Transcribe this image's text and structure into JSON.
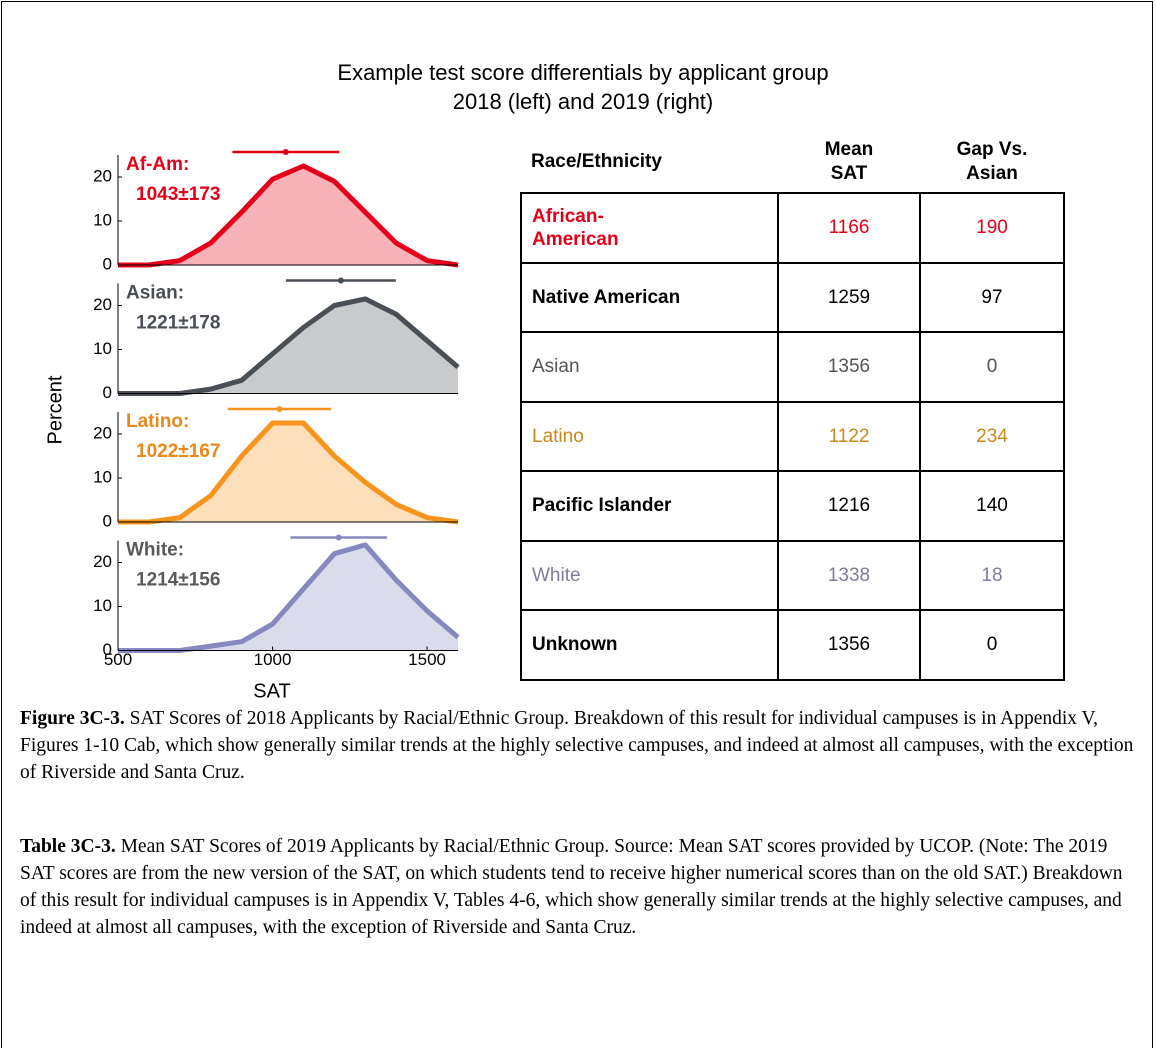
{
  "figure": {
    "title": [
      "Example test score differentials by applicant group",
      "2018 (left) and 2019 (right)"
    ],
    "ylabel": "Percent",
    "xlabel": "SAT"
  },
  "chart_data": [
    {
      "type": "line",
      "name": "Af-Am:",
      "annotation": "1043±173",
      "mean": 1043,
      "sd": 173,
      "color": "#e3001b",
      "text_color": "#e3001b",
      "x": [
        500,
        600,
        700,
        800,
        900,
        1000,
        1100,
        1200,
        1300,
        1400,
        1500,
        1600
      ],
      "values": [
        0,
        0,
        1,
        5,
        12,
        19.5,
        22.5,
        19,
        12,
        5,
        1,
        0
      ],
      "xlim": [
        500,
        1600
      ],
      "ylim": [
        0,
        25
      ],
      "yticks": [
        0,
        10,
        20
      ]
    },
    {
      "type": "line",
      "name": "Asian:",
      "annotation": "1221±178",
      "mean": 1221,
      "sd": 178,
      "color": "#4a4f55",
      "text_color": "#4a4f55",
      "x": [
        500,
        600,
        700,
        800,
        900,
        1000,
        1100,
        1200,
        1300,
        1400,
        1500,
        1600
      ],
      "values": [
        0,
        0,
        0,
        1,
        3,
        9,
        15,
        20,
        21.5,
        18,
        12,
        6
      ],
      "xlim": [
        500,
        1600
      ],
      "ylim": [
        0,
        25
      ],
      "yticks": [
        0,
        10,
        20
      ]
    },
    {
      "type": "line",
      "name": "Latino:",
      "annotation": "1022±167",
      "mean": 1022,
      "sd": 167,
      "color": "#f7941d",
      "text_color": "#e8891a",
      "x": [
        500,
        600,
        700,
        800,
        900,
        1000,
        1100,
        1200,
        1300,
        1400,
        1500,
        1600
      ],
      "values": [
        0,
        0,
        1,
        6,
        15,
        22.5,
        22.5,
        15,
        9,
        4,
        1,
        0
      ],
      "xlim": [
        500,
        1600
      ],
      "ylim": [
        0,
        25
      ],
      "yticks": [
        0,
        10,
        20
      ]
    },
    {
      "type": "line",
      "name": "White:",
      "annotation": "1214±156",
      "mean": 1214,
      "sd": 156,
      "color": "#8589bd",
      "text_color": "#5a5a5a",
      "x": [
        500,
        600,
        700,
        800,
        900,
        1000,
        1100,
        1200,
        1300,
        1400,
        1500,
        1600
      ],
      "values": [
        0,
        0,
        0,
        1,
        2,
        6,
        14,
        22,
        24,
        16,
        9,
        3
      ],
      "xlim": [
        500,
        1600
      ],
      "ylim": [
        0,
        25
      ],
      "yticks": [
        0,
        10,
        20
      ],
      "xticks": [
        500,
        1000,
        1500
      ]
    }
  ],
  "table": {
    "header": [
      "Race/Ethnicity",
      "Mean SAT",
      "Gap Vs. Asian"
    ],
    "rows": [
      {
        "cells": [
          "African-American",
          "1166",
          "190"
        ],
        "color": "#e3001b",
        "bold": true
      },
      {
        "cells": [
          "Native American",
          "1259",
          "97"
        ],
        "color": "#000000",
        "bold": true
      },
      {
        "cells": [
          "Asian",
          "1356",
          "0"
        ],
        "color": "#555555",
        "bold": false
      },
      {
        "cells": [
          "Latino",
          "1122",
          "234"
        ],
        "color": "#c8891f",
        "bold": false
      },
      {
        "cells": [
          "Pacific Islander",
          "1216",
          "140"
        ],
        "color": "#000000",
        "bold": true
      },
      {
        "cells": [
          "White",
          "1338",
          "18"
        ],
        "color": "#7d7d9a",
        "bold": false
      },
      {
        "cells": [
          "Unknown",
          "1356",
          "0"
        ],
        "color": "#000000",
        "bold": true
      }
    ]
  },
  "captions": [
    {
      "label": "Figure 3C-3.",
      "text": "SAT Scores of 2018 Applicants by Racial/Ethnic Group. Breakdown of this result for individual campuses is in Appendix V, Figures 1-10 Cab, which show generally similar trends at the highly selective campuses, and indeed at almost all campuses, with the exception of Riverside and Santa Cruz."
    },
    {
      "label": "Table 3C-3.",
      "text": "Mean SAT Scores of 2019 Applicants by Racial/Ethnic Group. Source: Mean SAT scores provided by UCOP. (Note: The 2019 SAT scores are from the new version of the SAT, on which students tend to receive higher numerical scores than on the old SAT.) Breakdown of this result for individual campuses is in Appendix V, Tables 4-6, which show generally similar trends at the highly selective campuses, and indeed at almost all campuses, with the exception of Riverside and Santa Cruz."
    }
  ]
}
